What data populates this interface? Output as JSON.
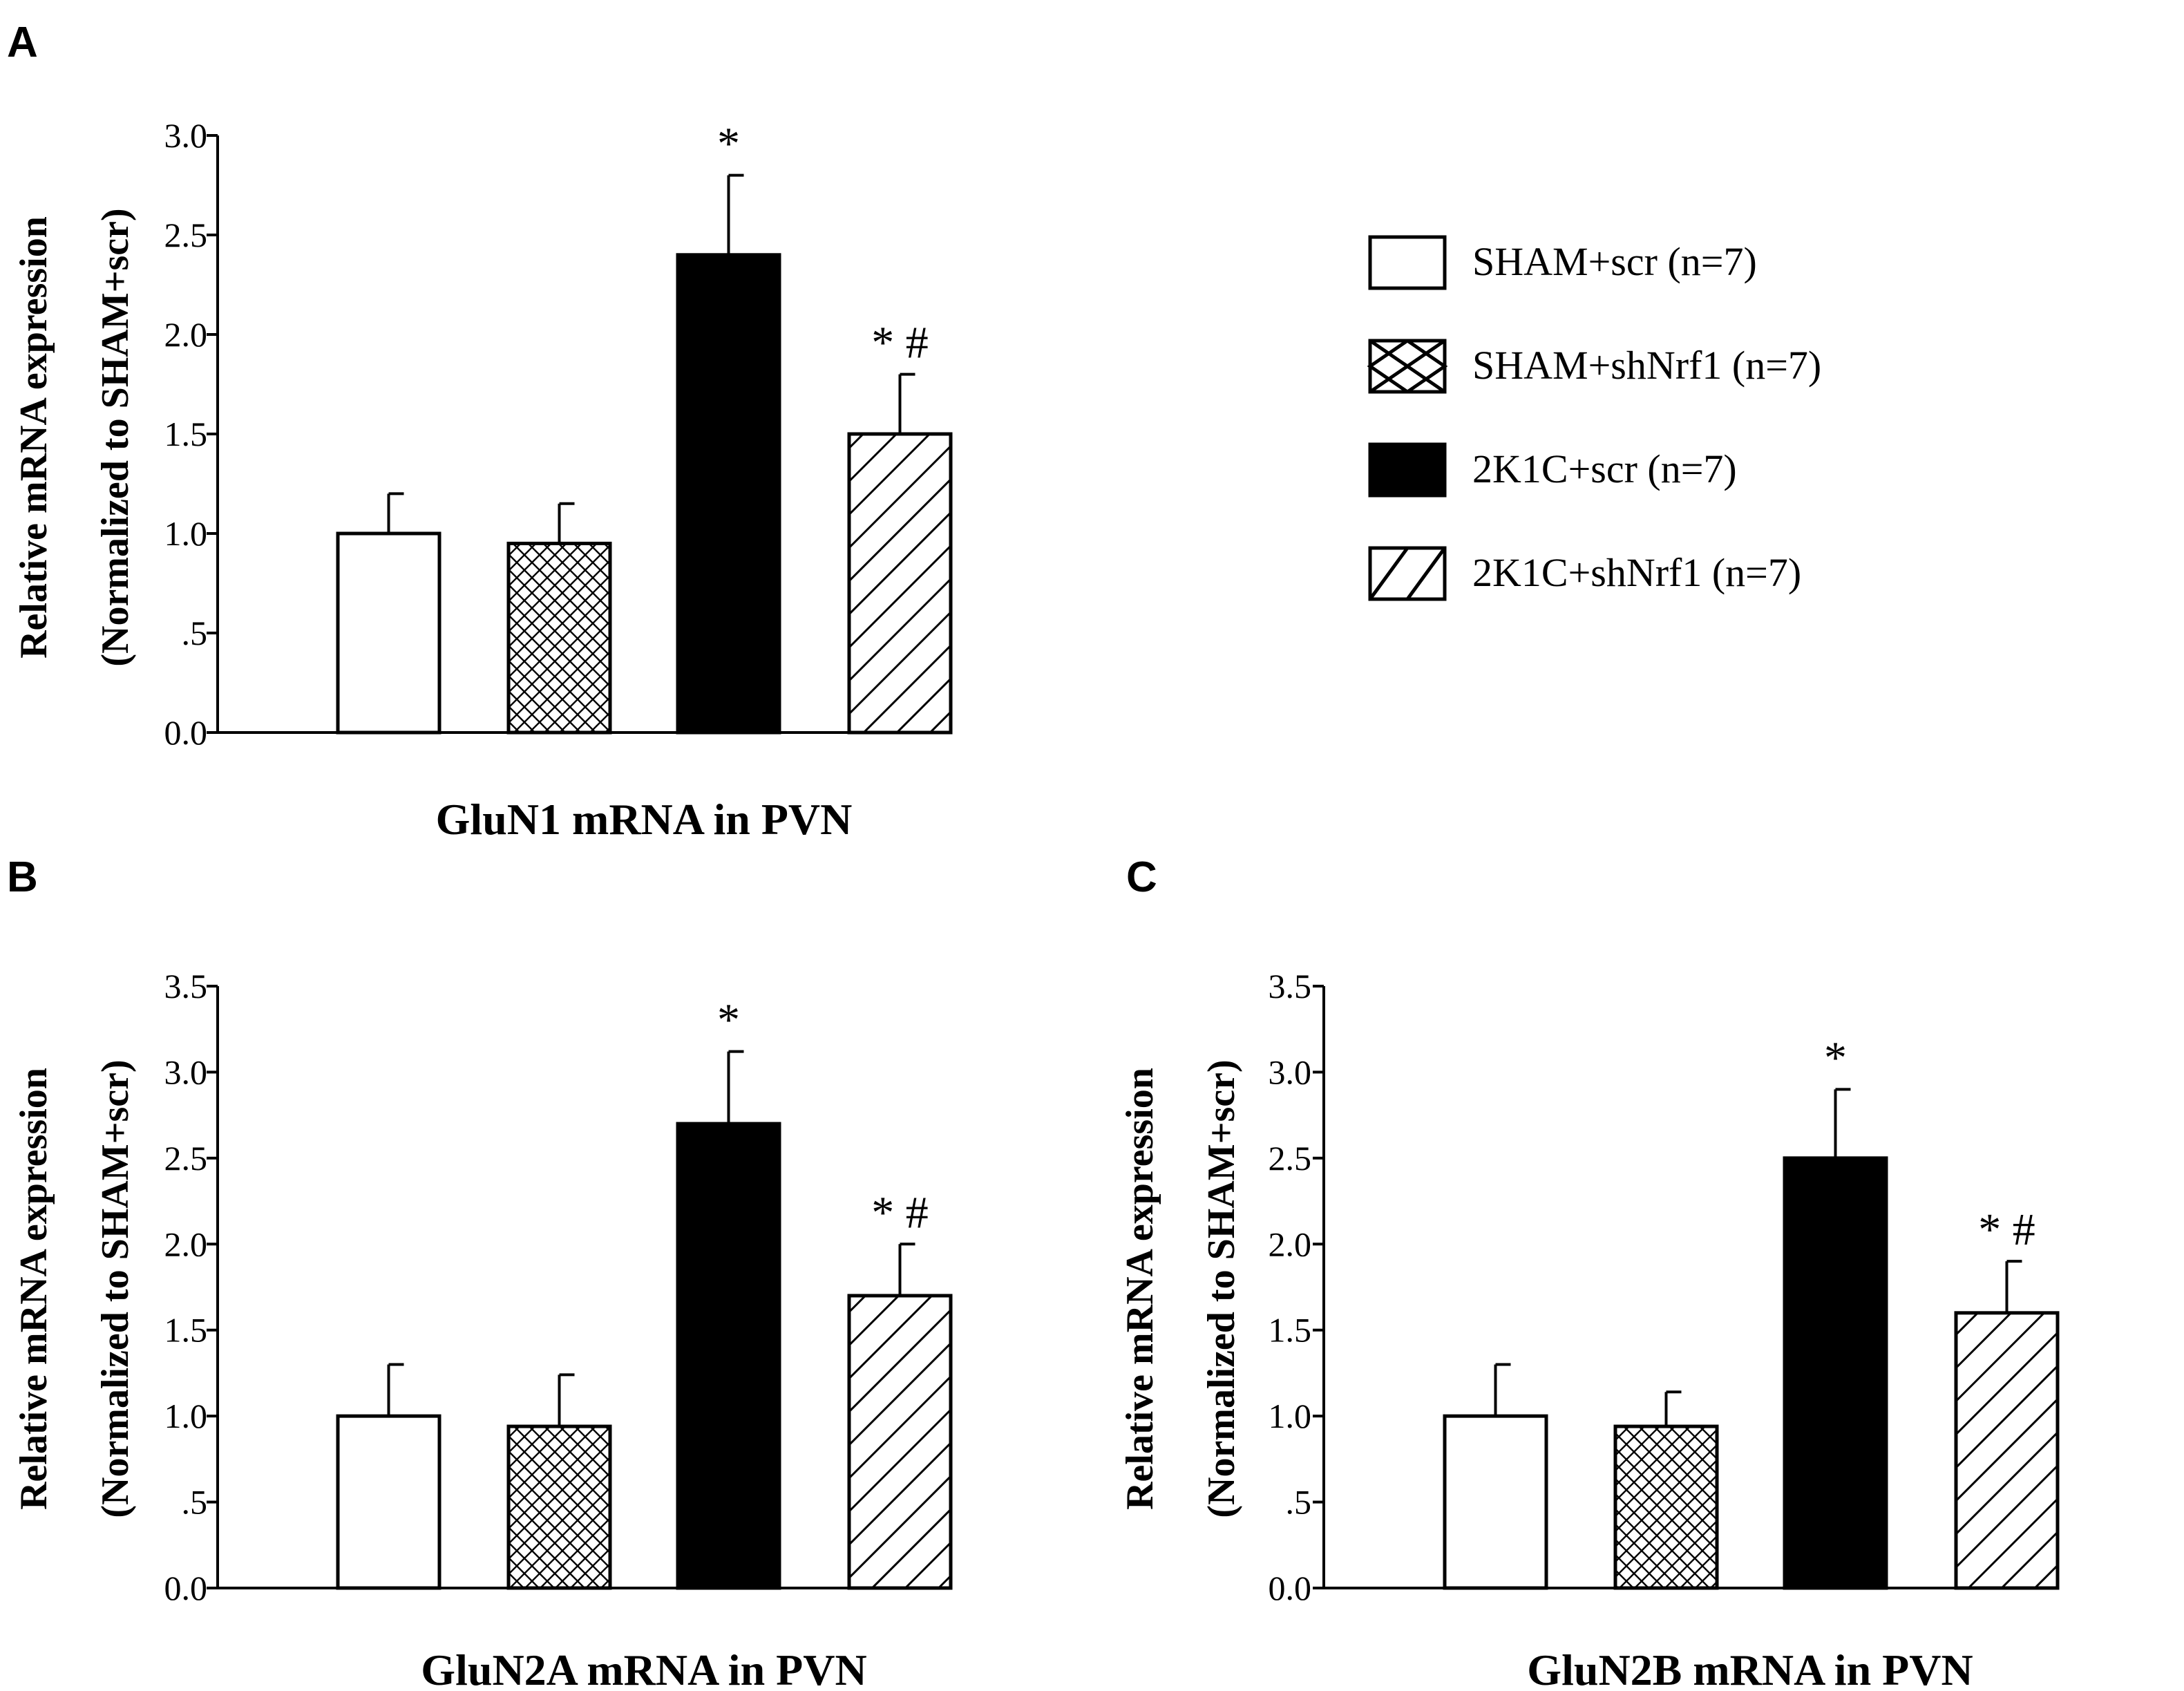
{
  "legend": [
    {
      "name": "SHAM+scr (n=7)",
      "fill": "white"
    },
    {
      "name": "SHAM+shNrf1 (n=7)",
      "fill": "crosshatch"
    },
    {
      "name": "2K1C+scr (n=7)",
      "fill": "black"
    },
    {
      "name": "2K1C+shNrf1 (n=7)",
      "fill": "diagonal"
    }
  ],
  "colors": {
    "ink": "#000000",
    "background": "#ffffff"
  },
  "chart_data": [
    {
      "panel": "A",
      "type": "bar",
      "title": "GluN1 mRNA in PVN",
      "ylabel_line1": "Relative mRNA expression",
      "ylabel_line2": "(Normalized to SHAM+scr)",
      "xlabel": "",
      "ylim": [
        0,
        3.0
      ],
      "yticks": [
        0,
        0.5,
        1.0,
        1.5,
        2.0,
        2.5,
        3.0
      ],
      "ytick_labels": [
        "0.0",
        ".5",
        "1.0",
        "1.5",
        "2.0",
        "2.5",
        "3.0"
      ],
      "categories": [
        "SHAM+scr",
        "SHAM+shNrf1",
        "2K1C+scr",
        "2K1C+shNrf1"
      ],
      "values": [
        1.0,
        0.95,
        2.4,
        1.5
      ],
      "errors": [
        0.2,
        0.2,
        0.4,
        0.3
      ],
      "annotations": [
        "",
        "",
        "*",
        "* #"
      ]
    },
    {
      "panel": "B",
      "type": "bar",
      "title": "GluN2A mRNA in PVN",
      "ylabel_line1": "Relative mRNA expression",
      "ylabel_line2": "(Normalized to SHAM+scr)",
      "xlabel": "",
      "ylim": [
        0,
        3.5
      ],
      "yticks": [
        0,
        0.5,
        1.0,
        1.5,
        2.0,
        2.5,
        3.0,
        3.5
      ],
      "ytick_labels": [
        "0.0",
        ".5",
        "1.0",
        "1.5",
        "2.0",
        "2.5",
        "3.0",
        "3.5"
      ],
      "categories": [
        "SHAM+scr",
        "SHAM+shNrf1",
        "2K1C+scr",
        "2K1C+shNrf1"
      ],
      "values": [
        1.0,
        0.94,
        2.7,
        1.7
      ],
      "errors": [
        0.3,
        0.3,
        0.42,
        0.3
      ],
      "annotations": [
        "",
        "",
        "*",
        "* #"
      ]
    },
    {
      "panel": "C",
      "type": "bar",
      "title": "GluN2B mRNA in PVN",
      "ylabel_line1": "Relative mRNA expression",
      "ylabel_line2": "(Normalized to SHAM+scr)",
      "xlabel": "",
      "ylim": [
        0,
        3.5
      ],
      "yticks": [
        0,
        0.5,
        1.0,
        1.5,
        2.0,
        2.5,
        3.0,
        3.5
      ],
      "ytick_labels": [
        "0.0",
        ".5",
        "1.0",
        "1.5",
        "2.0",
        "2.5",
        "3.0",
        "3.5"
      ],
      "categories": [
        "SHAM+scr",
        "SHAM+shNrf1",
        "2K1C+scr",
        "2K1C+shNrf1"
      ],
      "values": [
        1.0,
        0.94,
        2.5,
        1.6
      ],
      "errors": [
        0.3,
        0.2,
        0.4,
        0.3
      ],
      "annotations": [
        "",
        "",
        "*",
        "* #"
      ]
    }
  ]
}
